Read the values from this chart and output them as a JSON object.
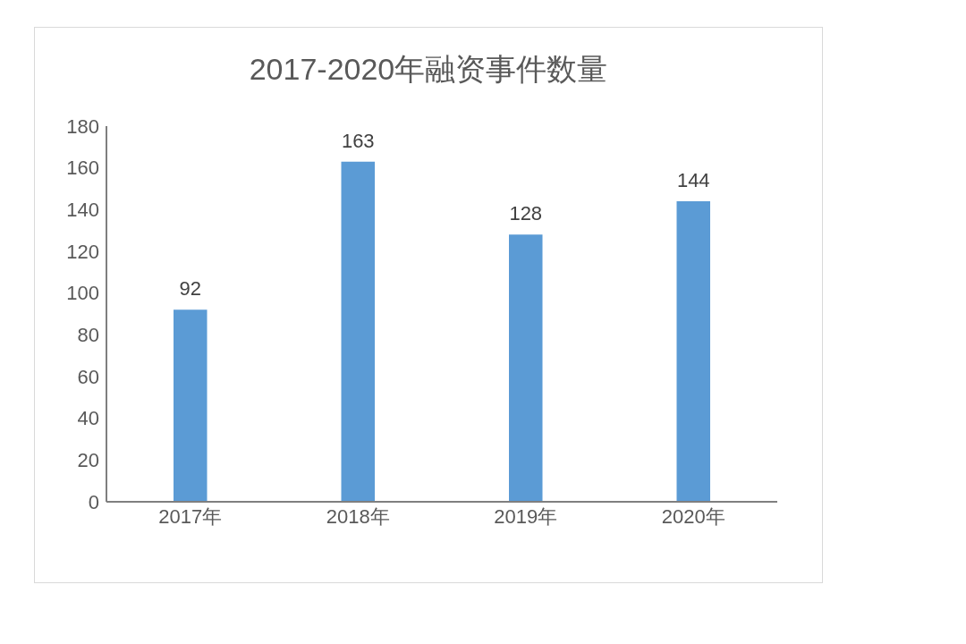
{
  "chart_data": {
    "type": "bar",
    "title": "2017-2020年融资事件数量",
    "categories": [
      "2017年",
      "2018年",
      "2019年",
      "2020年"
    ],
    "values": [
      92,
      163,
      128,
      144
    ],
    "color": "#5b9bd5",
    "ylim": [
      0,
      180
    ],
    "yticks": [
      0,
      20,
      40,
      60,
      80,
      100,
      120,
      140,
      160,
      180
    ],
    "grid": false,
    "legend": false,
    "data_labels": true
  }
}
